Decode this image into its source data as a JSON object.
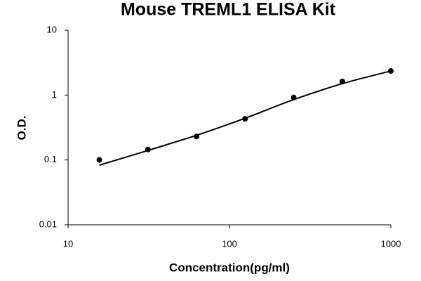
{
  "chart_data": {
    "type": "scatter",
    "title": "Mouse TREML1 ELISA Kit",
    "x_label": "Concentration(pg/ml)",
    "y_label": "O.D.",
    "x": [
      15.625,
      31.25,
      62.5,
      125,
      250,
      500,
      1000
    ],
    "series": [
      {
        "color": "#000000",
        "marker": "dot",
        "values": [
          0.1,
          0.145,
          0.23,
          0.43,
          0.92,
          1.62,
          2.35
        ]
      },
      {
        "color": "#000000",
        "marker": "curve",
        "values": [
          0.083,
          0.14,
          0.24,
          0.44,
          0.85,
          1.5,
          2.35
        ]
      }
    ],
    "xlim": [
      10,
      1000
    ],
    "ylim": [
      0.01,
      10
    ],
    "xticks": [
      10,
      100,
      1000
    ],
    "yticks": [
      0.01,
      0.1,
      1,
      10
    ],
    "xscale": "log",
    "yscale": "log",
    "grid": false
  }
}
